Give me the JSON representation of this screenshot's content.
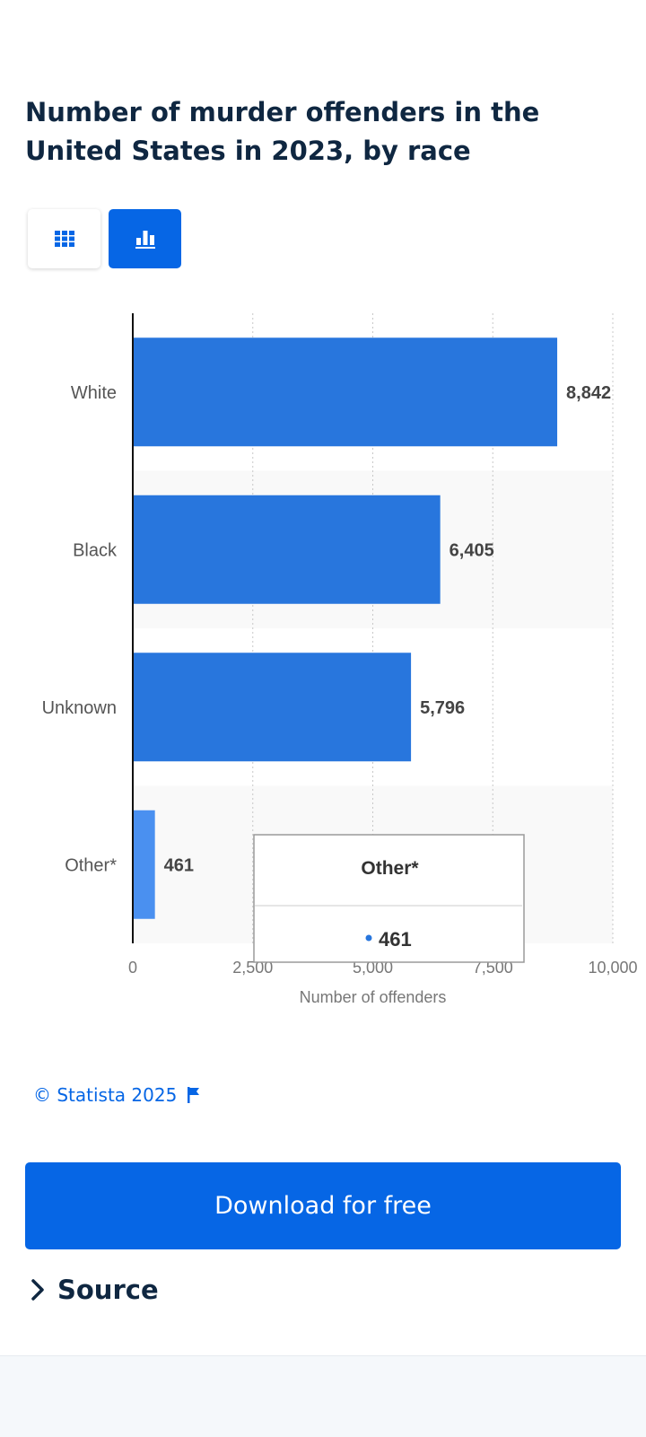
{
  "title": "Number of murder offenders in the United States in 2023, by race",
  "view_toggle": {
    "table_icon": "grid-icon",
    "chart_icon": "bar-chart-icon",
    "active": "chart"
  },
  "chart_data": {
    "type": "bar",
    "orientation": "horizontal",
    "categories": [
      "White",
      "Black",
      "Unknown",
      "Other*"
    ],
    "values": [
      8842,
      6405,
      5796,
      461
    ],
    "value_labels": [
      "8,842",
      "6,405",
      "5,796",
      "461"
    ],
    "xlabel": "Number of offenders",
    "xlim": [
      0,
      10000
    ],
    "ticks": [
      0,
      2500,
      5000,
      7500,
      10000
    ],
    "tick_labels": [
      "0",
      "2,500",
      "5,000",
      "7,500",
      "10,000"
    ],
    "grid": "vertical dotted",
    "bar_color": "#2876dd",
    "highlight_color": "#4a90f0",
    "highlighted_category": "Other*",
    "tooltip": {
      "category": "Other*",
      "value": "461"
    }
  },
  "copyright": "© Statista 2025",
  "copyright_icon": "flag-icon",
  "download_label": "Download for free",
  "source_label": "Source",
  "source_icon": "chevron-right-icon",
  "colors": {
    "accent": "#0666e5",
    "title": "#0f2741"
  }
}
